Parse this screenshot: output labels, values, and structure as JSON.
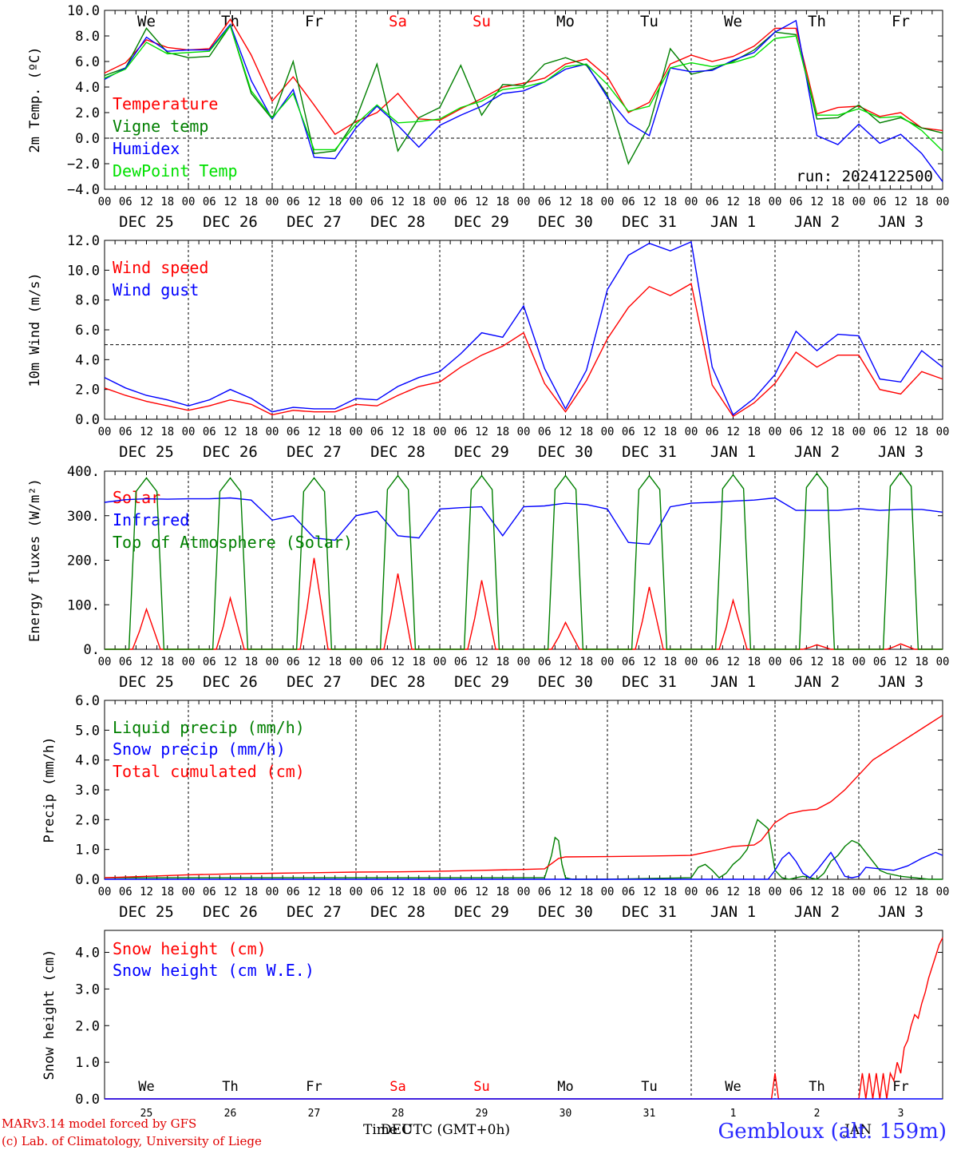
{
  "footer": {
    "model": "MARv3.14 model forced by GFS",
    "credit": "(c) Lab. of Climatology, University of Liege",
    "xlabel": "Time UTC (GMT+0h)",
    "month_dec": "DEC",
    "month_jan": "JAN",
    "location": "Gembloux (alt. 159m)"
  },
  "colors": {
    "red": "#ff0000",
    "green": "#007f00",
    "blue": "#0000ff",
    "lightgreen": "#00e000",
    "weekend": "#ff0000"
  },
  "chart_data": [
    {
      "type": "line",
      "ylabel": "2m Temp. (ºC)",
      "ylim": [
        -4,
        10
      ],
      "yticks": [
        "−4.0",
        "−2.0",
        "0.0",
        "2.0",
        "4.0",
        "6.0",
        "8.0",
        "10.0"
      ],
      "reference_line": 0,
      "day_names": [
        "We",
        "Th",
        "Fr",
        "Sa",
        "Su",
        "Mo",
        "Tu",
        "We",
        "Th",
        "Fr"
      ],
      "weekend_days": [
        3,
        4
      ],
      "hour_ticks": [
        "00",
        "06",
        "12",
        "18"
      ],
      "day_labels": [
        "DEC 25",
        "DEC 26",
        "DEC 27",
        "DEC 28",
        "DEC 29",
        "DEC 30",
        "DEC 31",
        "JAN  1",
        "JAN  2",
        "JAN  3"
      ],
      "annotation": "run: 2024122500",
      "x_hours": [
        0,
        6,
        12,
        18,
        24,
        30,
        36,
        42,
        48,
        54,
        60,
        66,
        72,
        78,
        84,
        90,
        96,
        102,
        108,
        114,
        120,
        126,
        132,
        138,
        144,
        150,
        156,
        162,
        168,
        174,
        180,
        186,
        192,
        198,
        204,
        210,
        216,
        222,
        228,
        234,
        240
      ],
      "series": [
        {
          "name": "Temperature",
          "color": "red",
          "values": [
            5.1,
            5.9,
            7.7,
            7.1,
            6.9,
            7.0,
            9.3,
            6.5,
            2.9,
            4.8,
            2.6,
            0.3,
            1.3,
            2.0,
            3.5,
            1.5,
            1.4,
            2.3,
            3.1,
            4.0,
            4.3,
            4.7,
            5.8,
            6.2,
            4.8,
            2.0,
            2.8,
            5.8,
            6.5,
            6.0,
            6.4,
            7.2,
            8.6,
            8.6,
            1.9,
            2.4,
            2.5,
            1.7,
            2.0,
            0.8,
            0.6
          ]
        },
        {
          "name": "Vigne temp",
          "color": "green",
          "values": [
            4.9,
            5.5,
            8.6,
            6.7,
            6.3,
            6.4,
            8.8,
            3.5,
            1.5,
            6.0,
            -1.2,
            -1.0,
            1.5,
            5.8,
            -1.0,
            1.6,
            2.4,
            5.7,
            1.8,
            4.2,
            4.1,
            5.8,
            6.3,
            5.7,
            3.4,
            -2.0,
            1.0,
            7.0,
            5.0,
            5.4,
            6.0,
            6.9,
            8.3,
            8.1,
            1.5,
            1.6,
            2.6,
            1.2,
            1.6,
            0.8,
            0.4
          ]
        },
        {
          "name": "Humidex",
          "color": "blue",
          "values": [
            4.6,
            5.5,
            7.9,
            6.8,
            6.9,
            6.9,
            8.9,
            4.5,
            1.5,
            3.8,
            -1.5,
            -1.6,
            0.8,
            2.5,
            1.0,
            -0.7,
            1.0,
            1.8,
            2.5,
            3.5,
            3.7,
            4.4,
            5.4,
            5.8,
            3.2,
            1.2,
            0.2,
            5.5,
            5.2,
            5.3,
            6.1,
            6.7,
            8.3,
            9.2,
            0.2,
            -0.5,
            1.1,
            -0.4,
            0.3,
            -1.2,
            -3.4
          ]
        },
        {
          "name": "DewPoint Temp",
          "color": "lightgreen",
          "values": [
            4.7,
            5.4,
            7.5,
            6.6,
            6.7,
            6.8,
            8.8,
            3.7,
            1.6,
            3.5,
            -0.9,
            -0.9,
            1.1,
            2.6,
            1.2,
            1.3,
            1.5,
            2.4,
            2.9,
            3.8,
            4.0,
            4.4,
            5.6,
            5.8,
            4.2,
            2.1,
            2.5,
            5.5,
            5.9,
            5.6,
            5.9,
            6.4,
            7.8,
            8.0,
            1.8,
            1.8,
            2.3,
            1.6,
            1.7,
            0.6,
            -1.0
          ]
        }
      ]
    },
    {
      "type": "line",
      "ylabel": "10m Wind (m/s)",
      "ylim": [
        0,
        12
      ],
      "yticks": [
        "0.0",
        "2.0",
        "4.0",
        "6.0",
        "8.0",
        "10.0",
        "12.0"
      ],
      "reference_line": 5,
      "hour_ticks": [
        "00",
        "06",
        "12",
        "18"
      ],
      "day_labels": [
        "DEC 25",
        "DEC 26",
        "DEC 27",
        "DEC 28",
        "DEC 29",
        "DEC 30",
        "DEC 31",
        "JAN  1",
        "JAN  2",
        "JAN  3"
      ],
      "x_hours": [
        0,
        6,
        12,
        18,
        24,
        30,
        36,
        42,
        48,
        54,
        60,
        66,
        72,
        78,
        84,
        90,
        96,
        102,
        108,
        114,
        120,
        126,
        132,
        138,
        144,
        150,
        156,
        162,
        168,
        174,
        180,
        186,
        192,
        198,
        204,
        210,
        216,
        222,
        228,
        234,
        240
      ],
      "series": [
        {
          "name": "Wind speed",
          "color": "red",
          "values": [
            2.1,
            1.6,
            1.2,
            0.9,
            0.6,
            0.9,
            1.3,
            1.0,
            0.3,
            0.6,
            0.5,
            0.5,
            1.0,
            0.9,
            1.6,
            2.2,
            2.5,
            3.5,
            4.3,
            4.9,
            5.8,
            2.4,
            0.5,
            2.6,
            5.4,
            7.5,
            8.9,
            8.3,
            9.1,
            2.3,
            0.2,
            1.1,
            2.4,
            4.5,
            3.5,
            4.3,
            4.3,
            2.0,
            1.7,
            3.2,
            2.7
          ]
        },
        {
          "name": "Wind gust",
          "color": "blue",
          "values": [
            2.8,
            2.1,
            1.6,
            1.3,
            0.9,
            1.3,
            2.0,
            1.4,
            0.5,
            0.8,
            0.7,
            0.7,
            1.4,
            1.3,
            2.2,
            2.8,
            3.2,
            4.4,
            5.8,
            5.5,
            7.6,
            3.4,
            0.7,
            3.3,
            8.7,
            11.0,
            11.8,
            11.3,
            11.9,
            3.5,
            0.3,
            1.4,
            3.0,
            5.9,
            4.6,
            5.7,
            5.6,
            2.7,
            2.5,
            4.6,
            3.5
          ]
        }
      ]
    },
    {
      "type": "line",
      "ylabel": "Energy fluxes (W/m²)",
      "ylim": [
        0,
        400
      ],
      "yticks": [
        "0.",
        "100.",
        "200.",
        "300.",
        "400."
      ],
      "hour_ticks": [
        "00",
        "06",
        "12",
        "18"
      ],
      "day_labels": [
        "DEC 25",
        "DEC 26",
        "DEC 27",
        "DEC 28",
        "DEC 29",
        "DEC 30",
        "DEC 31",
        "JAN  1",
        "JAN  2",
        "JAN  3"
      ],
      "series": [
        {
          "name": "Solar",
          "color": "red",
          "peaks": [
            90,
            115,
            205,
            170,
            155,
            60,
            140,
            110,
            10,
            12
          ]
        },
        {
          "name": "Infrared",
          "color": "blue",
          "x_hours": [
            0,
            6,
            12,
            18,
            24,
            30,
            36,
            42,
            48,
            54,
            60,
            66,
            72,
            78,
            84,
            90,
            96,
            102,
            108,
            114,
            120,
            126,
            132,
            138,
            144,
            150,
            156,
            162,
            168,
            174,
            180,
            186,
            192,
            198,
            204,
            210,
            216,
            222,
            228,
            234,
            240
          ],
          "values": [
            330,
            336,
            338,
            337,
            338,
            338,
            340,
            335,
            290,
            300,
            250,
            245,
            300,
            310,
            255,
            250,
            315,
            318,
            320,
            255,
            320,
            322,
            328,
            325,
            315,
            240,
            236,
            320,
            328,
            330,
            333,
            335,
            340,
            312,
            312,
            312,
            316,
            312,
            314,
            314,
            308
          ]
        },
        {
          "name": "Top of Atmosphere (Solar)",
          "color": "green",
          "peaks": [
            385,
            385,
            385,
            390,
            390,
            390,
            390,
            392,
            395,
            398
          ]
        }
      ]
    },
    {
      "type": "line",
      "ylabel": "Precip (mm/h)",
      "ylim": [
        0,
        6
      ],
      "yticks": [
        "0.0",
        "1.0",
        "2.0",
        "3.0",
        "4.0",
        "5.0",
        "6.0"
      ],
      "hour_ticks": [
        "00",
        "06",
        "12",
        "18"
      ],
      "day_labels": [
        "DEC 25",
        "DEC 26",
        "DEC 27",
        "DEC 28",
        "DEC 29",
        "DEC 30",
        "DEC 31",
        "JAN  1",
        "JAN  2",
        "JAN  3"
      ],
      "series": [
        {
          "name": "Liquid precip (mm/h)",
          "color": "green",
          "x_hours": [
            0,
            120,
            126,
            128,
            129,
            130,
            131,
            132,
            134,
            144,
            168,
            170,
            172,
            174,
            176,
            178,
            180,
            182,
            184,
            187,
            190,
            192,
            194,
            196,
            198,
            200,
            202,
            204,
            206,
            208,
            210,
            212,
            214,
            216,
            218,
            220,
            222,
            224,
            228,
            232,
            236,
            240
          ],
          "values": [
            0.05,
            0.05,
            0.05,
            0.8,
            1.4,
            1.3,
            0.5,
            0.05,
            0,
            0,
            0.05,
            0.4,
            0.5,
            0.3,
            0.05,
            0.2,
            0.5,
            0.7,
            1.0,
            2.0,
            1.7,
            0.3,
            0.05,
            0,
            0.05,
            0.1,
            0.05,
            0,
            0.2,
            0.6,
            0.8,
            1.1,
            1.3,
            1.2,
            0.9,
            0.6,
            0.3,
            0.2,
            0.1,
            0.05,
            0,
            0
          ]
        },
        {
          "name": "Snow precip (mm/h)",
          "color": "blue",
          "x_hours": [
            0,
            190,
            192,
            194,
            196,
            198,
            200,
            202,
            204,
            206,
            208,
            210,
            212,
            214,
            216,
            218,
            222,
            226,
            230,
            234,
            238,
            240
          ],
          "values": [
            0,
            0,
            0.3,
            0.7,
            0.9,
            0.6,
            0.2,
            0.05,
            0.3,
            0.6,
            0.9,
            0.5,
            0.1,
            0.05,
            0.1,
            0.4,
            0.35,
            0.3,
            0.45,
            0.7,
            0.9,
            0.8
          ]
        },
        {
          "name": "Total cumulated (cm)",
          "color": "red",
          "x_hours": [
            0,
            12,
            24,
            36,
            48,
            60,
            72,
            84,
            96,
            108,
            120,
            126,
            130,
            132,
            144,
            156,
            168,
            174,
            180,
            186,
            188,
            190,
            192,
            196,
            200,
            204,
            208,
            212,
            216,
            220,
            224,
            228,
            232,
            236,
            240
          ],
          "values": [
            0.05,
            0.1,
            0.15,
            0.18,
            0.2,
            0.22,
            0.24,
            0.25,
            0.27,
            0.3,
            0.33,
            0.35,
            0.7,
            0.75,
            0.76,
            0.78,
            0.8,
            0.95,
            1.1,
            1.15,
            1.3,
            1.6,
            1.9,
            2.2,
            2.3,
            2.35,
            2.6,
            3.0,
            3.5,
            4.0,
            4.3,
            4.6,
            4.9,
            5.2,
            5.5
          ]
        }
      ]
    },
    {
      "type": "line",
      "ylabel": "Snow height (cm)",
      "ylim": [
        0,
        4.6
      ],
      "yticks": [
        "0.0",
        "1.0",
        "2.0",
        "3.0",
        "4.0"
      ],
      "day_names": [
        "We",
        "Th",
        "Fr",
        "Sa",
        "Su",
        "Mo",
        "Tu",
        "We",
        "Th",
        "Fr"
      ],
      "weekend_days": [
        3,
        4
      ],
      "day_numbers": [
        "25",
        "26",
        "27",
        "28",
        "29",
        "30",
        "31",
        "1",
        "2",
        "3"
      ],
      "series": [
        {
          "name": "Snow height (cm)",
          "color": "red",
          "x_hours": [
            0,
            191,
            192,
            193,
            216,
            217,
            218,
            219,
            220,
            221,
            222,
            223,
            224,
            225,
            226,
            227,
            228,
            229,
            230,
            231,
            232,
            233,
            234,
            235,
            236,
            237,
            238,
            239,
            240
          ],
          "values": [
            0,
            0,
            0.7,
            0,
            0,
            0.7,
            0,
            0.7,
            0,
            0.7,
            0,
            0.7,
            0,
            0.7,
            0.5,
            1.0,
            0.7,
            1.4,
            1.6,
            2.0,
            2.3,
            2.2,
            2.6,
            2.9,
            3.3,
            3.6,
            3.9,
            4.2,
            4.4
          ]
        },
        {
          "name": "Snow height (cm W.E.)",
          "color": "blue",
          "x_hours": [
            0,
            240
          ],
          "values": [
            0,
            0
          ]
        }
      ]
    }
  ]
}
